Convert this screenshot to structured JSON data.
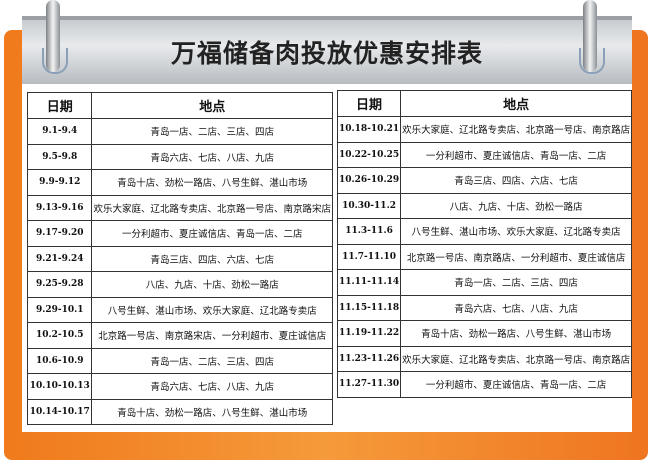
{
  "title": "万福储备肉投放优惠安排表",
  "colors": {
    "frame": "#f07a1c",
    "header": "#d4d8dc"
  },
  "left": {
    "headers": [
      "日期",
      "地点"
    ],
    "rows": [
      [
        "9.1-9.4",
        "青岛一店、二店、三店、四店"
      ],
      [
        "9.5-9.8",
        "青岛六店、七店、八店、九店"
      ],
      [
        "9.9-9.12",
        "青岛十店、劲松一路店、八号生鲜、湛山市场"
      ],
      [
        "9.13-9.16",
        "欢乐大家庭、辽北路专卖店、北京路一号店、南京路宋店"
      ],
      [
        "9.17-9.20",
        "一分利超市、夏庄诚信店、青岛一店、二店"
      ],
      [
        "9.21-9.24",
        "青岛三店、四店、六店、七店"
      ],
      [
        "9.25-9.28",
        "八店、九店、十店、劲松一路店"
      ],
      [
        "9.29-10.1",
        "八号生鲜、湛山市场、欢乐大家庭、辽北路专卖店"
      ],
      [
        "10.2-10.5",
        "北京路一号店、南京路宋店、一分利超市、夏庄诚信店"
      ],
      [
        "10.6-10.9",
        "青岛一店、二店、三店、四店"
      ],
      [
        "10.10-10.13",
        "青岛六店、七店、八店、九店"
      ],
      [
        "10.14-10.17",
        "青岛十店、劲松一路店、八号生鲜、湛山市场"
      ]
    ]
  },
  "right": {
    "headers": [
      "日期",
      "地点"
    ],
    "rows": [
      [
        "10.18-10.21",
        "欢乐大家庭、辽北路专卖店、北京路一号店、南京路店"
      ],
      [
        "10.22-10.25",
        "一分利超市、夏庄诚信店、青岛一店、二店"
      ],
      [
        "10.26-10.29",
        "青岛三店、四店、六店、七店"
      ],
      [
        "10.30-11.2",
        "八店、九店、十店、劲松一路店"
      ],
      [
        "11.3-11.6",
        "八号生鲜、湛山市场、欢乐大家庭、辽北路专卖店"
      ],
      [
        "11.7-11.10",
        "北京路一号店、南京路店、一分利超市、夏庄诚信店"
      ],
      [
        "11.11-11.14",
        "青岛一店、二店、三店、四店"
      ],
      [
        "11.15-11.18",
        "青岛六店、七店、八店、九店"
      ],
      [
        "11.19-11.22",
        "青岛十店、劲松一路店、八号生鲜、湛山市场"
      ],
      [
        "11.23-11.26",
        "欢乐大家庭、辽北路专卖店、北京路一号店、南京路店"
      ],
      [
        "11.27-11.30",
        "一分利超市、夏庄诚信店、青岛一店、二店"
      ]
    ]
  }
}
